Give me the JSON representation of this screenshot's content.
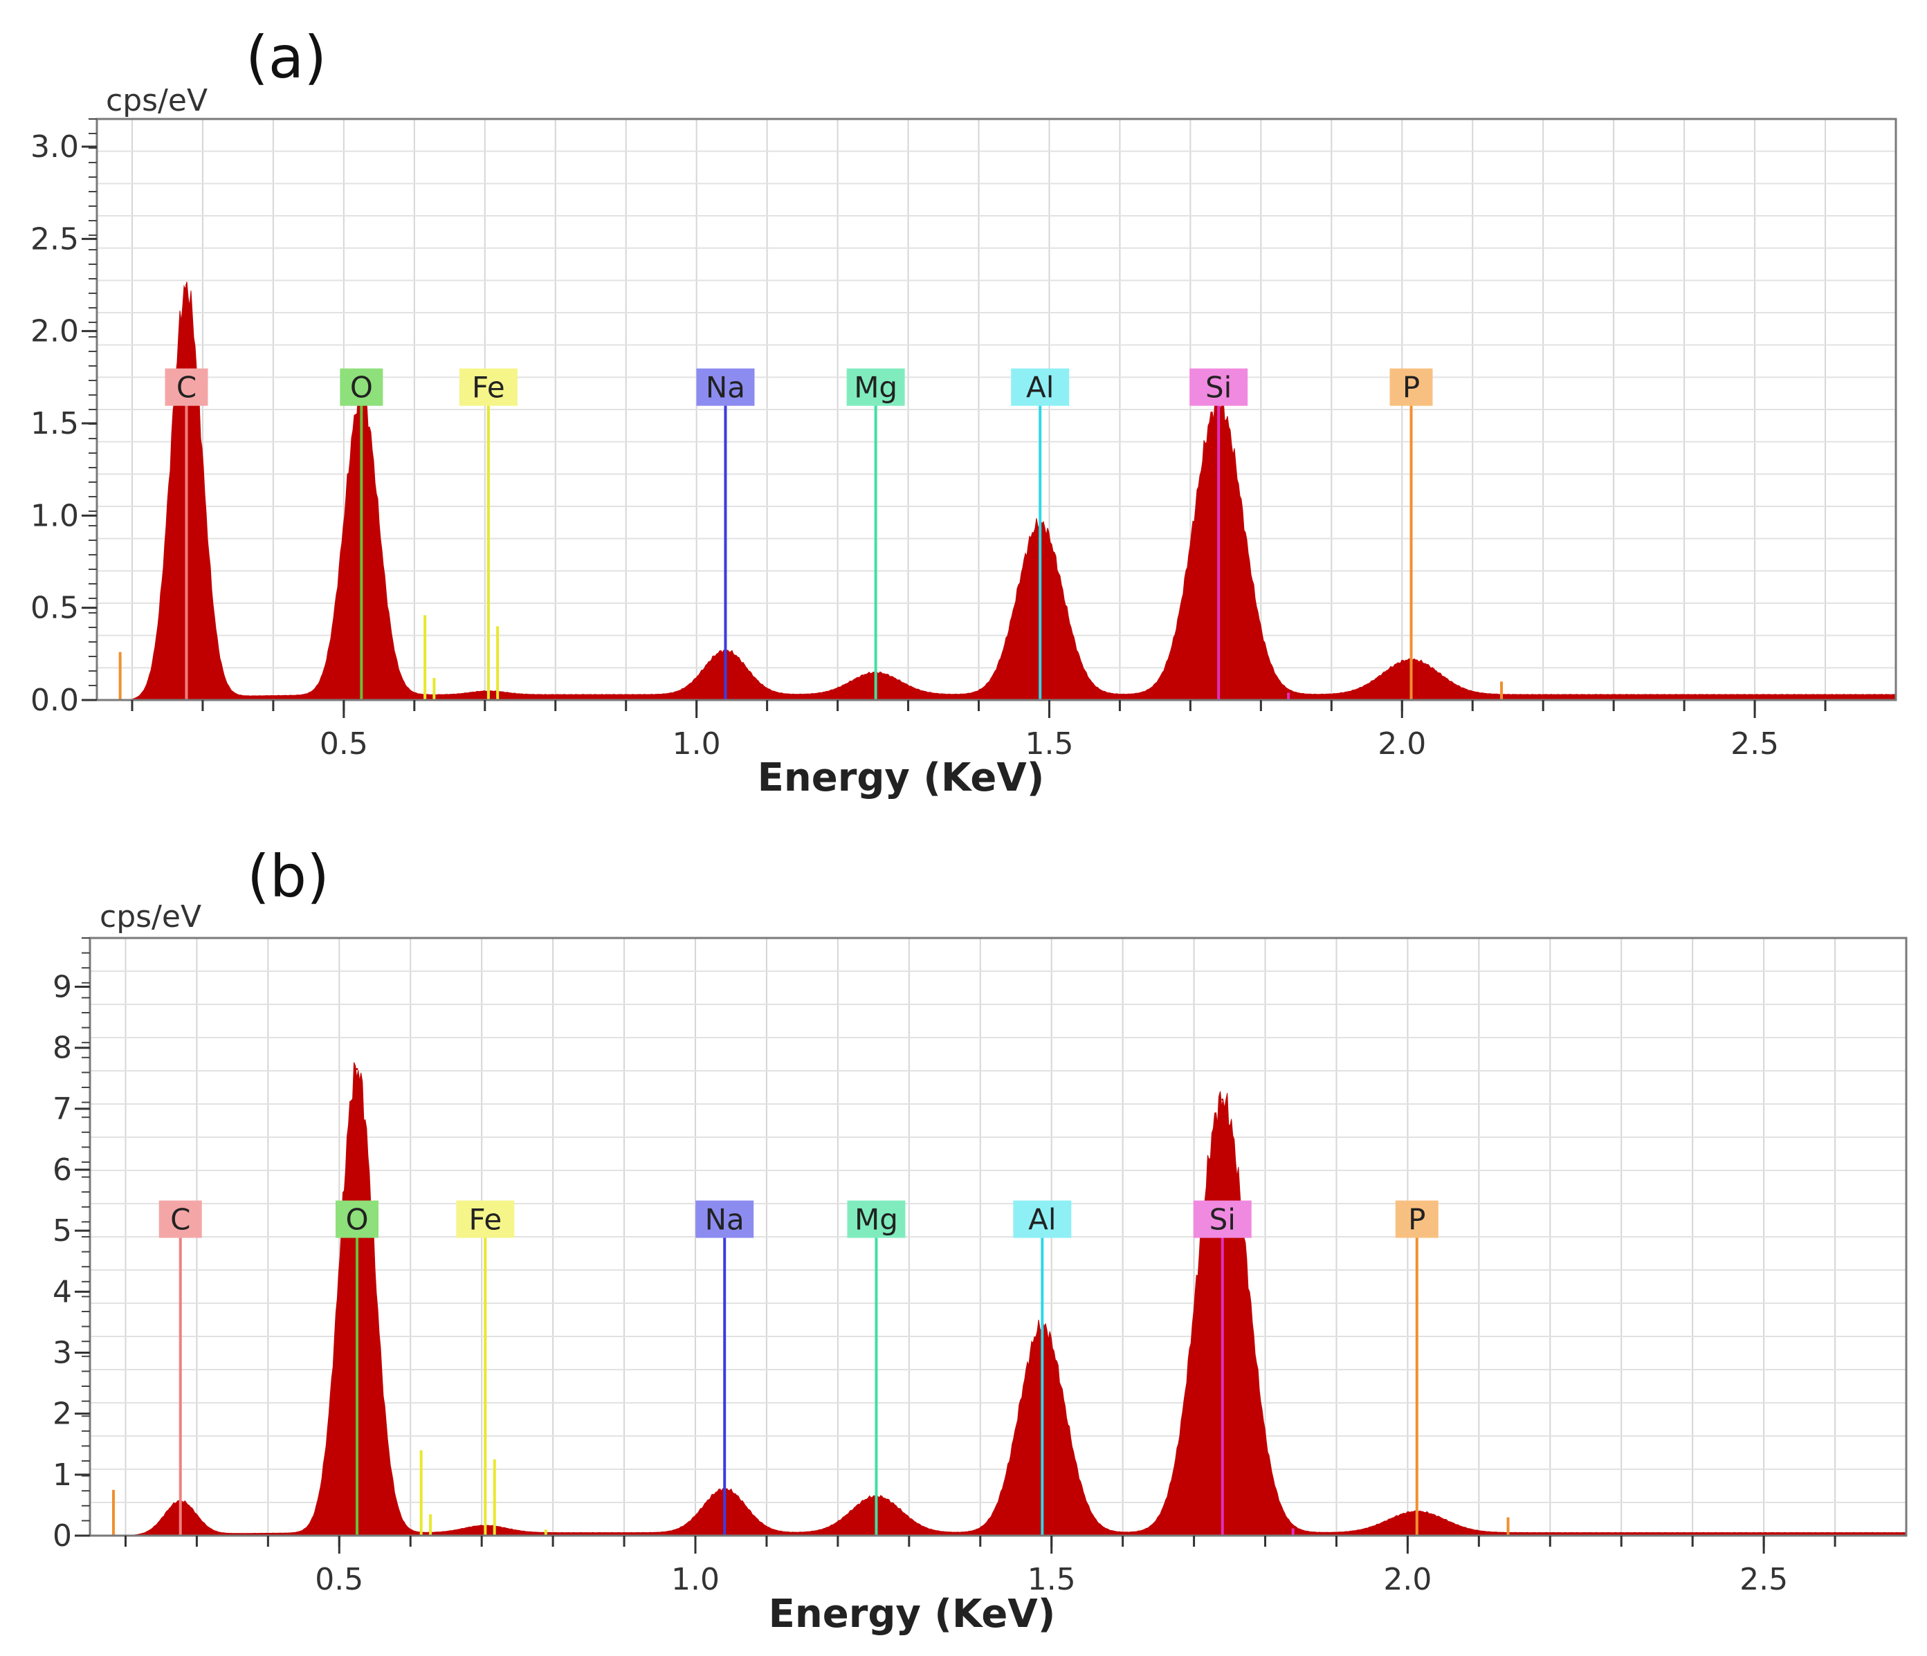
{
  "chart_data": [
    {
      "type": "area",
      "panel": "(a)",
      "unit_label": "cps/eV",
      "xlabel": "Energy (KeV)",
      "ylabel": "cps/eV",
      "xlim": [
        0.15,
        2.7
      ],
      "ylim": [
        0.0,
        3.15
      ],
      "x_ticks": [
        "0.5",
        "1.0",
        "1.5",
        "2.0",
        "2.5"
      ],
      "x_tick_values": [
        0.5,
        1.0,
        1.5,
        2.0,
        2.5
      ],
      "y_ticks": [
        "0.0",
        "0.5",
        "1.0",
        "1.5",
        "2.0",
        "2.5",
        "3.0"
      ],
      "y_tick_values": [
        0.0,
        0.5,
        1.0,
        1.5,
        2.0,
        2.5,
        3.0
      ],
      "grid": true,
      "fill_color": "#c00000",
      "background": 0.03,
      "peaks": [
        {
          "element": "C",
          "energy": 0.277,
          "height": 2.22,
          "width": 0.022
        },
        {
          "element": "O",
          "energy": 0.525,
          "height": 1.63,
          "width": 0.024
        },
        {
          "element": "Fe",
          "energy": 0.705,
          "height": 0.02,
          "width": 0.025
        },
        {
          "element": "Na",
          "energy": 1.041,
          "height": 0.24,
          "width": 0.03
        },
        {
          "element": "Mg",
          "energy": 1.254,
          "height": 0.12,
          "width": 0.035
        },
        {
          "element": "Al",
          "energy": 1.487,
          "height": 0.93,
          "width": 0.032
        },
        {
          "element": "Si",
          "energy": 1.74,
          "height": 1.58,
          "width": 0.035
        },
        {
          "element": "P",
          "energy": 2.013,
          "height": 0.19,
          "width": 0.04
        }
      ],
      "element_markers": [
        {
          "label": "C",
          "energy": 0.277,
          "color": "#f08080",
          "label_bg": "#f4a6a6"
        },
        {
          "label": "O",
          "energy": 0.525,
          "color": "#6bbf3a",
          "label_bg": "#8ee07a"
        },
        {
          "label": "Fe",
          "energy": 0.705,
          "color": "#e8e830",
          "label_bg": "#f5f58a"
        },
        {
          "label": "Na",
          "energy": 1.041,
          "color": "#3c3ce0",
          "label_bg": "#8c8cf0"
        },
        {
          "label": "Mg",
          "energy": 1.254,
          "color": "#40e0a0",
          "label_bg": "#80ecbe"
        },
        {
          "label": "Al",
          "energy": 1.487,
          "color": "#30d8e8",
          "label_bg": "#8ef0f5"
        },
        {
          "label": "Si",
          "energy": 1.74,
          "color": "#e030c0",
          "label_bg": "#f08ae0"
        },
        {
          "label": "P",
          "energy": 2.013,
          "color": "#f09030",
          "label_bg": "#f8c080"
        }
      ],
      "marker_label_y": 1.7,
      "minor_lines": [
        {
          "energy": 0.183,
          "height": 0.26,
          "color": "#f09030"
        },
        {
          "energy": 0.615,
          "height": 0.46,
          "color": "#e8e830"
        },
        {
          "energy": 0.628,
          "height": 0.12,
          "color": "#e8e830"
        },
        {
          "energy": 0.718,
          "height": 0.4,
          "color": "#e8e830"
        },
        {
          "energy": 1.839,
          "height": 0.04,
          "color": "#e030c0"
        },
        {
          "energy": 2.141,
          "height": 0.1,
          "color": "#f09030"
        }
      ]
    },
    {
      "type": "area",
      "panel": "(b)",
      "unit_label": "cps/eV",
      "xlabel": "Energy (KeV)",
      "ylabel": "cps/eV",
      "xlim": [
        0.15,
        2.7
      ],
      "ylim": [
        0.0,
        9.8
      ],
      "x_ticks": [
        "0.5",
        "1.0",
        "1.5",
        "2.0",
        "2.5"
      ],
      "x_tick_values": [
        0.5,
        1.0,
        1.5,
        2.0,
        2.5
      ],
      "y_ticks": [
        "0",
        "1",
        "2",
        "3",
        "4",
        "5",
        "6",
        "7",
        "8",
        "9"
      ],
      "y_tick_values": [
        0,
        1,
        2,
        3,
        4,
        5,
        6,
        7,
        8,
        9
      ],
      "grid": true,
      "fill_color": "#c00000",
      "background": 0.05,
      "peaks": [
        {
          "element": "C",
          "energy": 0.277,
          "height": 0.55,
          "width": 0.022
        },
        {
          "element": "O",
          "energy": 0.525,
          "height": 7.6,
          "width": 0.024
        },
        {
          "element": "Fe",
          "energy": 0.705,
          "height": 0.12,
          "width": 0.03
        },
        {
          "element": "Na",
          "energy": 1.041,
          "height": 0.72,
          "width": 0.03
        },
        {
          "element": "Mg",
          "energy": 1.254,
          "height": 0.6,
          "width": 0.035
        },
        {
          "element": "Al",
          "energy": 1.487,
          "height": 3.4,
          "width": 0.032
        },
        {
          "element": "Si",
          "energy": 1.74,
          "height": 7.1,
          "width": 0.035
        },
        {
          "element": "P",
          "energy": 2.013,
          "height": 0.35,
          "width": 0.04
        }
      ],
      "element_markers": [
        {
          "label": "C",
          "energy": 0.277,
          "color": "#f08080",
          "label_bg": "#f4a6a6"
        },
        {
          "label": "O",
          "energy": 0.525,
          "color": "#6bbf3a",
          "label_bg": "#8ee07a"
        },
        {
          "label": "Fe",
          "energy": 0.705,
          "color": "#e8e830",
          "label_bg": "#f5f58a"
        },
        {
          "label": "Na",
          "energy": 1.041,
          "color": "#3c3ce0",
          "label_bg": "#8c8cf0"
        },
        {
          "label": "Mg",
          "energy": 1.254,
          "color": "#40e0a0",
          "label_bg": "#80ecbe"
        },
        {
          "label": "Al",
          "energy": 1.487,
          "color": "#30d8e8",
          "label_bg": "#8ef0f5"
        },
        {
          "label": "Si",
          "energy": 1.74,
          "color": "#e030c0",
          "label_bg": "#f08ae0"
        },
        {
          "label": "P",
          "energy": 2.013,
          "color": "#f09030",
          "label_bg": "#f8c080"
        }
      ],
      "marker_label_y": 5.2,
      "minor_lines": [
        {
          "energy": 0.183,
          "height": 0.75,
          "color": "#f09030"
        },
        {
          "energy": 0.615,
          "height": 1.4,
          "color": "#e8e830"
        },
        {
          "energy": 0.628,
          "height": 0.35,
          "color": "#e8e830"
        },
        {
          "energy": 0.718,
          "height": 1.25,
          "color": "#e8e830"
        },
        {
          "energy": 0.79,
          "height": 0.1,
          "color": "#e8e830"
        },
        {
          "energy": 1.839,
          "height": 0.12,
          "color": "#e030c0"
        },
        {
          "energy": 2.141,
          "height": 0.3,
          "color": "#f09030"
        }
      ]
    }
  ]
}
